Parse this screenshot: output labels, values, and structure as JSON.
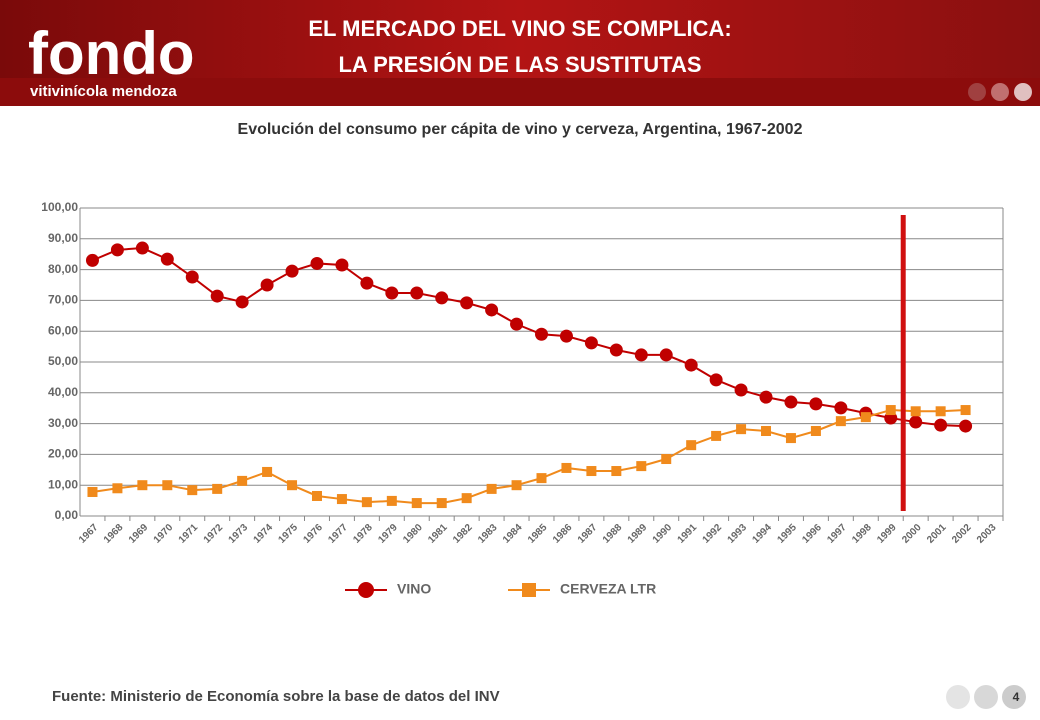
{
  "header": {
    "logo": "fondo",
    "logo_subtitle": "vitivinícola mendoza",
    "title_line1": "EL MERCADO DEL VINO SE COMPLICA:",
    "title_line2": "LA PRESIÓN DE LAS SUSTITUTAS"
  },
  "chart_data": {
    "type": "line",
    "title": "Evolución del consumo per cápita de vino y cerveza, Argentina, 1967-2002",
    "categories": [
      "1967",
      "1968",
      "1969",
      "1970",
      "1971",
      "1972",
      "1973",
      "1974",
      "1975",
      "1976",
      "1977",
      "1978",
      "1979",
      "1980",
      "1981",
      "1982",
      "1983",
      "1984",
      "1985",
      "1986",
      "1987",
      "1988",
      "1989",
      "1990",
      "1991",
      "1992",
      "1993",
      "1994",
      "1995",
      "1996",
      "1997",
      "1998",
      "1999",
      "2000",
      "2001",
      "2002",
      "2003"
    ],
    "series": [
      {
        "name": "VINO",
        "color": "#c00000",
        "marker": "circle",
        "values": [
          83,
          86.4,
          87,
          83.4,
          77.6,
          71.4,
          69.5,
          75,
          79.5,
          82,
          81.5,
          75.6,
          72.4,
          72.4,
          70.8,
          69.2,
          66.9,
          62.3,
          59,
          58.4,
          56.2,
          53.9,
          52.3,
          52.3,
          49,
          44.2,
          40.9,
          38.6,
          37,
          36.4,
          35.1,
          33.4,
          31.8,
          30.5,
          29.5,
          29.2,
          null
        ]
      },
      {
        "name": "CERVEZA LTR",
        "color": "#f08a1c",
        "marker": "square",
        "values": [
          7.8,
          9,
          10,
          10,
          8.4,
          8.8,
          11.4,
          14.3,
          10,
          6.5,
          5.5,
          4.5,
          4.9,
          4.2,
          4.2,
          5.8,
          8.8,
          10,
          12.3,
          15.6,
          14.6,
          14.6,
          16.2,
          18.5,
          23,
          26,
          28.2,
          27.6,
          25.3,
          27.6,
          30.8,
          32.1,
          34.4,
          34,
          34,
          34.4,
          null
        ]
      }
    ],
    "ylim": [
      0,
      100
    ],
    "yticks": [
      {
        "value": 0,
        "label": "0,00"
      },
      {
        "value": 10,
        "label": "10,00"
      },
      {
        "value": 20,
        "label": "20,00"
      },
      {
        "value": 30,
        "label": "30,00"
      },
      {
        "value": 40,
        "label": "40,00"
      },
      {
        "value": 50,
        "label": "50,00"
      },
      {
        "value": 60,
        "label": "60,00"
      },
      {
        "value": 70,
        "label": "70,00"
      },
      {
        "value": 80,
        "label": "80,00"
      },
      {
        "value": 90,
        "label": "90,00"
      },
      {
        "value": 100,
        "label": "100,00"
      }
    ],
    "grid": true
  },
  "footer": {
    "source": "Fuente: Ministerio de Economía sobre la base de datos del INV",
    "page": "4"
  }
}
